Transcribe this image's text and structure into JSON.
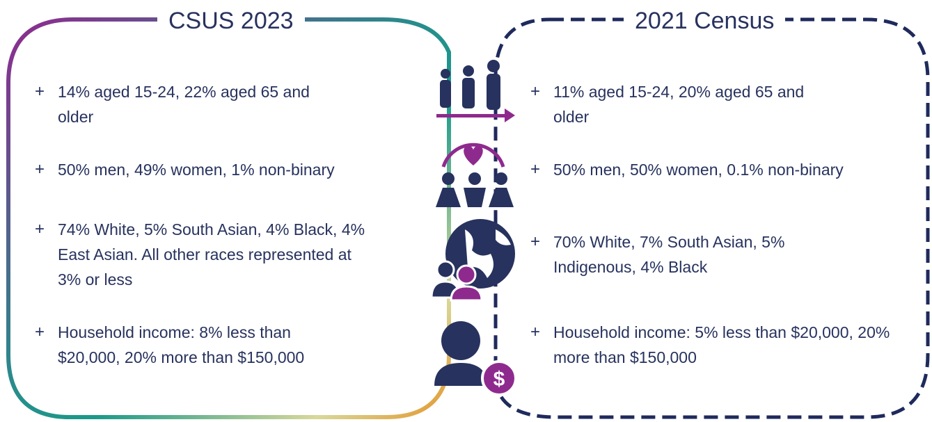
{
  "left": {
    "title": "CSUS 2023",
    "items": [
      "14% aged 15-24, 22% aged 65 and older",
      "50% men, 49% women, 1% non-binary",
      "74% White, 5% South Asian, 4% Black, 4% East Asian. All other races represented at 3% or less",
      "Household income: 8% less than $20,000, 20% more than $150,000"
    ]
  },
  "right": {
    "title": "2021 Census",
    "items": [
      "11% aged 15-24, 20% aged 65 and older",
      "50% men, 50% women, 0.1% non-binary",
      "70% White, 7% South Asian, 5% Indigenous, 4% Black",
      "Household income: 5% less than $20,000, 20% more than $150,000"
    ]
  }
}
